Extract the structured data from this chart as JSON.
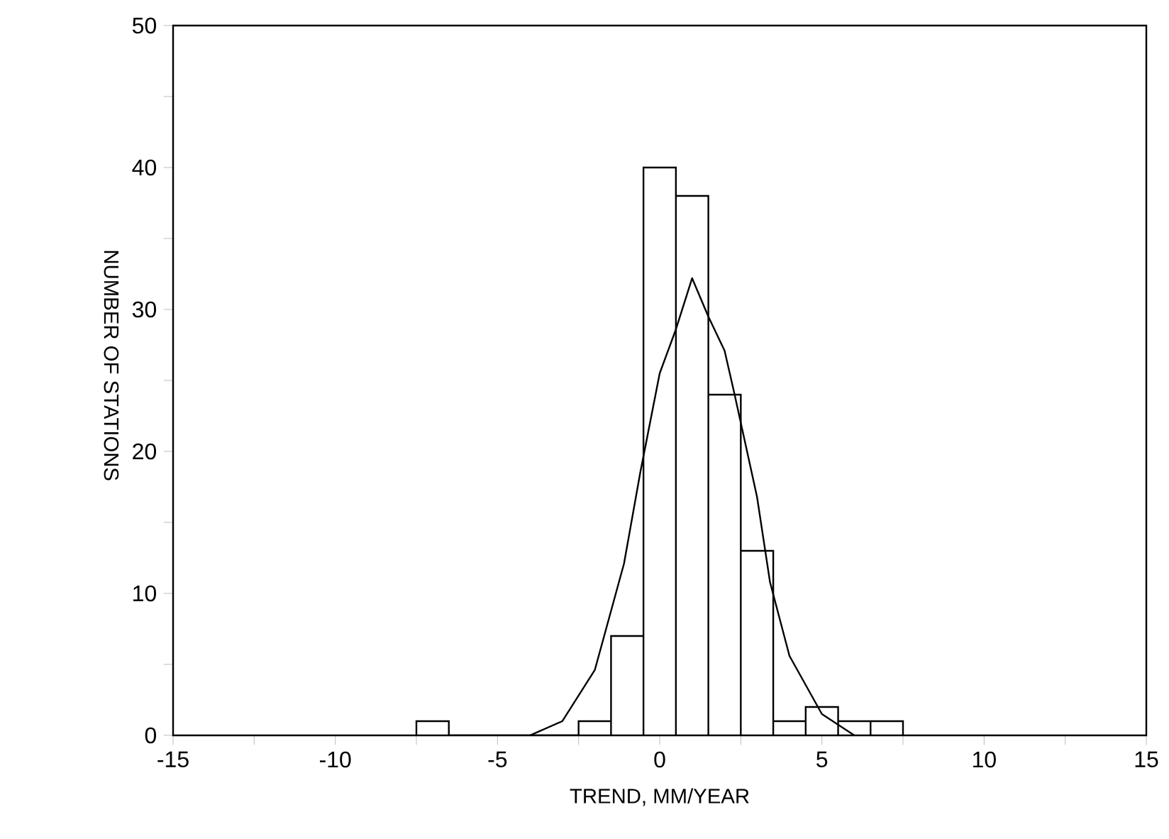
{
  "chart_data": {
    "type": "histogram",
    "xlabel": "TREND, MM/YEAR",
    "ylabel": "NUMBER OF STATIONS",
    "bins": [
      -7.5,
      -6.5,
      -5.5,
      -4.5,
      -3.5,
      -2.5,
      -1.5,
      -0.5,
      0.5,
      1.5,
      2.5,
      3.5,
      4.5,
      5.5,
      6.5,
      7.5
    ],
    "values": [
      1,
      0,
      0,
      0,
      0,
      1,
      7,
      40,
      38,
      24,
      13,
      1,
      2,
      1,
      1
    ],
    "color": "#ffffff",
    "series": [
      {
        "type": "line",
        "color": "#000000",
        "x": [
          -4.0,
          -3.0,
          -2.0,
          -1.1,
          -0.6,
          0.0,
          0.5,
          1.0,
          1.5,
          2.0,
          2.3,
          3.0,
          3.4,
          4.0,
          5.0,
          6.0
        ],
        "values": [
          0,
          1.0,
          4.6,
          12.1,
          18.5,
          25.5,
          28.6,
          32.2,
          29.5,
          27.1,
          24.1,
          16.8,
          10.8,
          5.6,
          1.5,
          0
        ]
      }
    ],
    "xlim": [
      -15,
      15
    ],
    "ylim": [
      0,
      50
    ],
    "xticks": [
      -15,
      {
        "value": -12.5,
        "label": null
      },
      -10,
      {
        "value": -7.5,
        "label": null
      },
      -5,
      {
        "value": -2.5,
        "label": null
      },
      0,
      {
        "value": 2.5,
        "label": null
      },
      5,
      {
        "value": 7.5,
        "label": null
      },
      10,
      {
        "value": 12.5,
        "label": null
      },
      15
    ],
    "yticks": [
      0,
      {
        "value": 5,
        "label": null
      },
      10,
      {
        "value": 15,
        "label": null
      },
      20,
      {
        "value": 25,
        "label": null
      },
      30,
      {
        "value": 35,
        "label": null
      },
      40,
      {
        "value": 45,
        "label": null
      },
      50
    ]
  }
}
